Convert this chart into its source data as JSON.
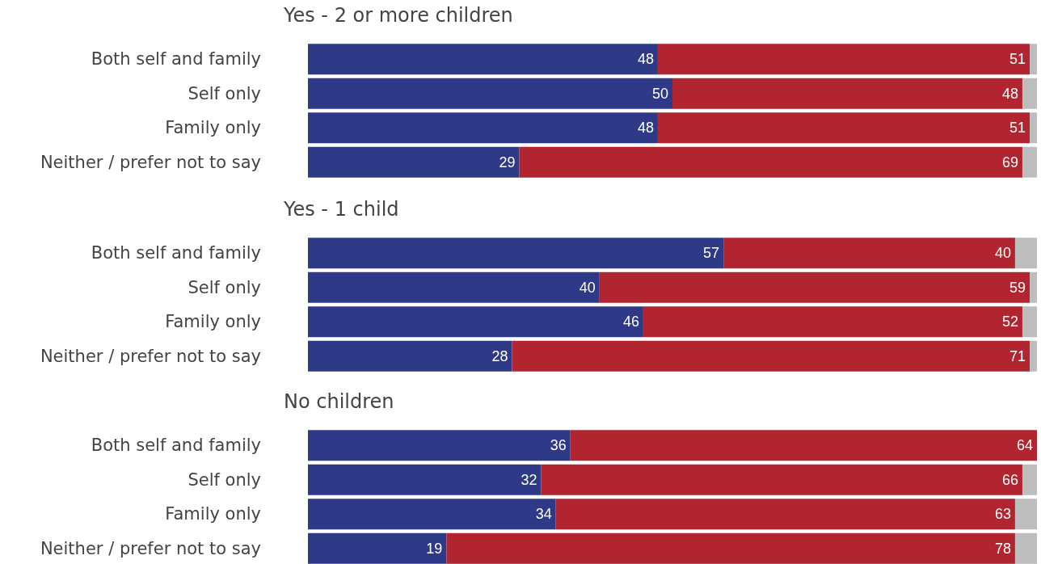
{
  "chart_data": [
    {
      "type": "bar",
      "orientation": "horizontal",
      "stacked": true,
      "title": "Yes - 2 or more children",
      "categories": [
        "Both self and family",
        "Self only",
        "Family only",
        "Neither / prefer not to say"
      ],
      "xlim": [
        0,
        100
      ],
      "tick_labels": "y",
      "series": [
        {
          "color": "#2e3a87",
          "values": [
            48,
            50,
            48,
            29
          ],
          "value_labels": [
            "48",
            "50",
            "48",
            "29"
          ]
        },
        {
          "color": "#b0252f",
          "values": [
            51,
            48,
            51,
            69
          ],
          "value_labels": [
            "51",
            "48",
            "51",
            "69"
          ]
        },
        {
          "color": "#bdbdbd",
          "values": [
            1,
            2,
            1,
            2
          ],
          "value_labels": [
            null,
            null,
            null,
            null
          ]
        }
      ]
    },
    {
      "type": "bar",
      "orientation": "horizontal",
      "stacked": true,
      "title": "Yes - 1 child",
      "categories": [
        "Both self and family",
        "Self only",
        "Family only",
        "Neither / prefer not to say"
      ],
      "xlim": [
        0,
        100
      ],
      "tick_labels": "y",
      "series": [
        {
          "color": "#2e3a87",
          "values": [
            57,
            40,
            46,
            28
          ],
          "value_labels": [
            "57",
            "40",
            "46",
            "28"
          ]
        },
        {
          "color": "#b0252f",
          "values": [
            40,
            59,
            52,
            71
          ],
          "value_labels": [
            "40",
            "59",
            "52",
            "71"
          ]
        },
        {
          "color": "#bdbdbd",
          "values": [
            3,
            1,
            2,
            1
          ],
          "value_labels": [
            null,
            null,
            null,
            null
          ]
        }
      ]
    },
    {
      "type": "bar",
      "orientation": "horizontal",
      "stacked": true,
      "title": "No children",
      "categories": [
        "Both self and family",
        "Self only",
        "Family only",
        "Neither / prefer not to say"
      ],
      "xlim": [
        0,
        100
      ],
      "tick_labels": "y",
      "series": [
        {
          "color": "#2e3a87",
          "values": [
            36,
            32,
            34,
            19
          ],
          "value_labels": [
            "36",
            "32",
            "34",
            "19"
          ]
        },
        {
          "color": "#b0252f",
          "values": [
            64,
            66,
            63,
            78
          ],
          "value_labels": [
            "64",
            "66",
            "63",
            "78"
          ]
        },
        {
          "color": "#bdbdbd",
          "values": [
            0,
            2,
            3,
            3
          ],
          "value_labels": [
            null,
            null,
            null,
            null
          ]
        }
      ]
    }
  ]
}
